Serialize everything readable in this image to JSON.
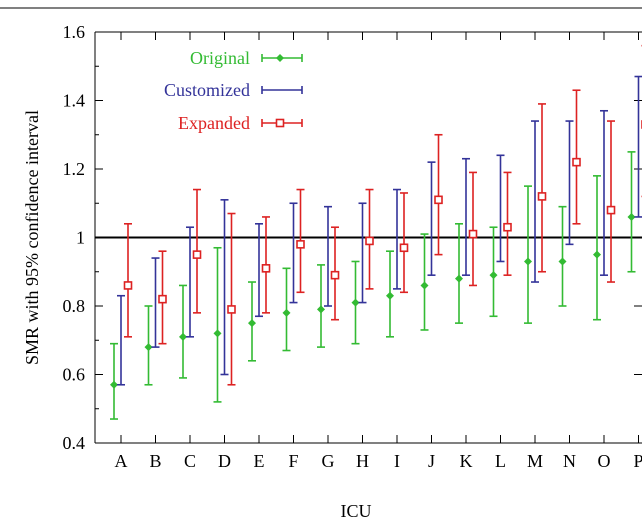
{
  "chart_data": {
    "type": "scatter",
    "xlabel": "ICU",
    "ylabel": "SMR with 95% confidence interval",
    "ylim": [
      0.4,
      1.6
    ],
    "yticks": [
      "0.4",
      "0.6",
      "0.8",
      "1",
      "1.2",
      "1.4",
      "1.6"
    ],
    "reference_line": 1.0,
    "categories": [
      "A",
      "B",
      "C",
      "D",
      "E",
      "F",
      "G",
      "H",
      "I",
      "J",
      "K",
      "L",
      "M",
      "N",
      "O",
      "P"
    ],
    "legend_position": "top-left",
    "series": [
      {
        "name": "Original",
        "color": "#33bb33",
        "marker": "diamond",
        "values": [
          0.57,
          0.68,
          0.71,
          0.72,
          0.75,
          0.78,
          0.79,
          0.81,
          0.83,
          0.86,
          0.88,
          0.89,
          0.93,
          0.93,
          0.95,
          1.06
        ],
        "lower": [
          0.47,
          0.57,
          0.59,
          0.52,
          0.64,
          0.67,
          0.68,
          0.69,
          0.71,
          0.73,
          0.75,
          0.77,
          0.75,
          0.8,
          0.76,
          0.9
        ],
        "upper": [
          0.69,
          0.8,
          0.86,
          0.97,
          0.87,
          0.91,
          0.92,
          0.93,
          0.96,
          1.01,
          1.04,
          1.03,
          1.15,
          1.09,
          1.18,
          1.25
        ]
      },
      {
        "name": "Customized",
        "color": "#333399",
        "marker": "none",
        "values": [
          0.69,
          0.81,
          0.86,
          0.86,
          0.89,
          0.95,
          0.94,
          0.95,
          0.98,
          1.05,
          1.05,
          1.08,
          1.09,
          1.15,
          1.11,
          1.26
        ],
        "lower": [
          0.57,
          0.68,
          0.71,
          0.6,
          0.77,
          0.81,
          0.8,
          0.81,
          0.85,
          0.89,
          0.89,
          0.93,
          0.87,
          0.98,
          0.89,
          1.06
        ],
        "upper": [
          0.83,
          0.94,
          1.03,
          1.11,
          1.04,
          1.1,
          1.09,
          1.1,
          1.14,
          1.22,
          1.23,
          1.24,
          1.34,
          1.34,
          1.37,
          1.47
        ]
      },
      {
        "name": "Expanded",
        "color": "#dd2222",
        "marker": "square",
        "values": [
          0.86,
          0.82,
          0.95,
          0.79,
          0.91,
          0.98,
          0.89,
          0.99,
          0.97,
          1.11,
          1.01,
          1.03,
          1.12,
          1.22,
          1.08,
          1.33
        ],
        "lower": [
          0.71,
          0.69,
          0.78,
          0.57,
          0.78,
          0.84,
          0.76,
          0.85,
          0.84,
          0.95,
          0.86,
          0.89,
          0.9,
          1.04,
          0.87,
          1.12
        ],
        "upper": [
          1.04,
          0.96,
          1.14,
          1.07,
          1.06,
          1.14,
          1.03,
          1.14,
          1.13,
          1.3,
          1.19,
          1.19,
          1.39,
          1.43,
          1.34,
          1.56
        ]
      }
    ]
  }
}
